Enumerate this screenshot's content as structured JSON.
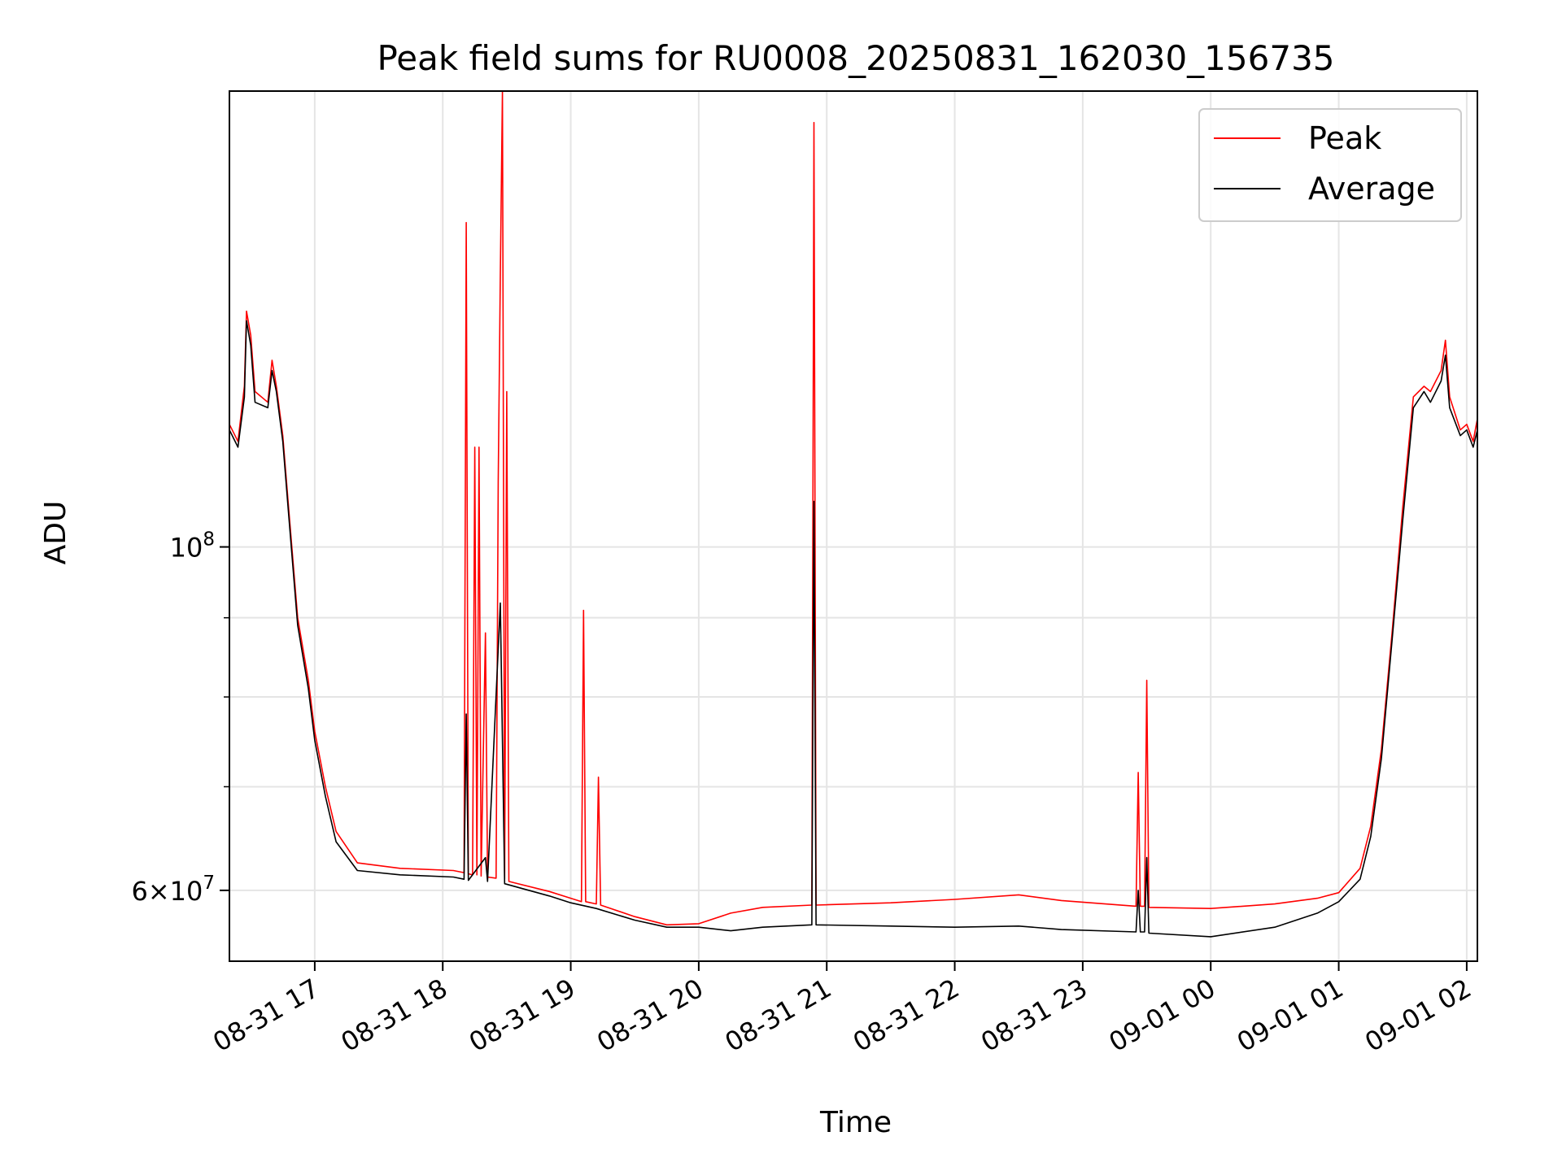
{
  "chart_data": {
    "type": "line",
    "title": "Peak field sums for RU0008_20250831_162030_156735",
    "xlabel": "Time",
    "ylabel": "ADU",
    "y_scale": "log",
    "ylim": [
      54000000,
      197000000
    ],
    "xlim": [
      "2025-08-31 16:20",
      "2025-09-01 02:05"
    ],
    "grid": true,
    "legend_position": "upper-right",
    "x_ticks": [
      {
        "t": "2025-08-31 17:00",
        "label": "08-31 17"
      },
      {
        "t": "2025-08-31 18:00",
        "label": "08-31 18"
      },
      {
        "t": "2025-08-31 19:00",
        "label": "08-31 19"
      },
      {
        "t": "2025-08-31 20:00",
        "label": "08-31 20"
      },
      {
        "t": "2025-08-31 21:00",
        "label": "08-31 21"
      },
      {
        "t": "2025-08-31 22:00",
        "label": "08-31 22"
      },
      {
        "t": "2025-08-31 23:00",
        "label": "08-31 23"
      },
      {
        "t": "2025-09-01 00:00",
        "label": "09-01 00"
      },
      {
        "t": "2025-09-01 01:00",
        "label": "09-01 01"
      },
      {
        "t": "2025-09-01 02:00",
        "label": "09-01 02"
      }
    ],
    "y_ticks_major": [
      {
        "v": 60000000,
        "mant": "6",
        "exp": "7"
      },
      {
        "v": 100000000,
        "mant": "",
        "exp": "8"
      }
    ],
    "y_ticks_minor": [
      70000000,
      80000000,
      90000000
    ],
    "series": [
      {
        "name": "Peak",
        "color": "#ff0000",
        "points": [
          [
            "2025-08-31 16:20",
            120000000
          ],
          [
            "2025-08-31 16:24",
            117000000
          ],
          [
            "2025-08-31 16:27",
            127000000
          ],
          [
            "2025-08-31 16:28",
            142000000
          ],
          [
            "2025-08-31 16:30",
            137000000
          ],
          [
            "2025-08-31 16:32",
            126000000
          ],
          [
            "2025-08-31 16:38",
            124000000
          ],
          [
            "2025-08-31 16:40",
            132000000
          ],
          [
            "2025-08-31 16:42",
            127000000
          ],
          [
            "2025-08-31 16:45",
            118000000
          ],
          [
            "2025-08-31 16:48",
            105000000
          ],
          [
            "2025-08-31 16:52",
            90000000
          ],
          [
            "2025-08-31 16:57",
            82000000
          ],
          [
            "2025-08-31 17:00",
            76000000
          ],
          [
            "2025-08-31 17:05",
            70000000
          ],
          [
            "2025-08-31 17:10",
            65500000
          ],
          [
            "2025-08-31 17:20",
            62500000
          ],
          [
            "2025-08-31 17:40",
            62000000
          ],
          [
            "2025-08-31 18:05",
            61800000
          ],
          [
            "2025-08-31 18:10",
            61600000
          ],
          [
            "2025-08-31 18:11",
            162000000
          ],
          [
            "2025-08-31 18:12",
            61500000
          ],
          [
            "2025-08-31 18:14",
            61400000
          ],
          [
            "2025-08-31 18:15",
            116000000
          ],
          [
            "2025-08-31 18:16",
            61400000
          ],
          [
            "2025-08-31 18:17",
            116000000
          ],
          [
            "2025-08-31 18:18",
            61300000
          ],
          [
            "2025-08-31 18:20",
            88000000
          ],
          [
            "2025-08-31 18:21",
            61200000
          ],
          [
            "2025-08-31 18:25",
            61100000
          ],
          [
            "2025-08-31 18:26",
            110000000
          ],
          [
            "2025-08-31 18:27",
            150000000
          ],
          [
            "2025-08-31 18:28",
            197000000
          ],
          [
            "2025-08-31 18:29",
            61000000
          ],
          [
            "2025-08-31 18:30",
            126000000
          ],
          [
            "2025-08-31 18:31",
            60800000
          ],
          [
            "2025-08-31 18:50",
            59900000
          ],
          [
            "2025-08-31 19:00",
            59300000
          ],
          [
            "2025-08-31 19:05",
            59000000
          ],
          [
            "2025-08-31 19:06",
            91000000
          ],
          [
            "2025-08-31 19:07",
            59000000
          ],
          [
            "2025-08-31 19:12",
            58800000
          ],
          [
            "2025-08-31 19:13",
            71000000
          ],
          [
            "2025-08-31 19:14",
            58700000
          ],
          [
            "2025-08-31 19:30",
            57700000
          ],
          [
            "2025-08-31 19:45",
            57000000
          ],
          [
            "2025-08-31 20:00",
            57100000
          ],
          [
            "2025-08-31 20:15",
            58000000
          ],
          [
            "2025-08-31 20:30",
            58500000
          ],
          [
            "2025-08-31 20:53",
            58700000
          ],
          [
            "2025-08-31 20:54",
            188000000
          ],
          [
            "2025-08-31 20:55",
            58700000
          ],
          [
            "2025-08-31 21:30",
            58900000
          ],
          [
            "2025-08-31 22:00",
            59200000
          ],
          [
            "2025-08-31 22:30",
            59600000
          ],
          [
            "2025-08-31 22:50",
            59100000
          ],
          [
            "2025-08-31 23:25",
            58600000
          ],
          [
            "2025-08-31 23:26",
            71500000
          ],
          [
            "2025-08-31 23:27",
            58600000
          ],
          [
            "2025-08-31 23:29",
            58600000
          ],
          [
            "2025-08-31 23:30",
            82000000
          ],
          [
            "2025-08-31 23:31",
            58500000
          ],
          [
            "2025-09-01 00:00",
            58400000
          ],
          [
            "2025-09-01 00:30",
            58800000
          ],
          [
            "2025-09-01 00:50",
            59300000
          ],
          [
            "2025-09-01 01:00",
            59800000
          ],
          [
            "2025-09-01 01:10",
            62000000
          ],
          [
            "2025-09-01 01:15",
            66000000
          ],
          [
            "2025-09-01 01:20",
            74000000
          ],
          [
            "2025-09-01 01:25",
            88000000
          ],
          [
            "2025-09-01 01:30",
            106000000
          ],
          [
            "2025-09-01 01:35",
            125000000
          ],
          [
            "2025-09-01 01:40",
            127000000
          ],
          [
            "2025-09-01 01:43",
            126000000
          ],
          [
            "2025-09-01 01:48",
            130000000
          ],
          [
            "2025-09-01 01:50",
            136000000
          ],
          [
            "2025-09-01 01:52",
            125000000
          ],
          [
            "2025-09-01 01:57",
            119000000
          ],
          [
            "2025-09-01 02:00",
            120000000
          ],
          [
            "2025-09-01 02:03",
            117000000
          ],
          [
            "2025-09-01 02:05",
            121000000
          ]
        ]
      },
      {
        "name": "Average",
        "color": "#000000",
        "points": [
          [
            "2025-08-31 16:20",
            119000000
          ],
          [
            "2025-08-31 16:24",
            116000000
          ],
          [
            "2025-08-31 16:27",
            125000000
          ],
          [
            "2025-08-31 16:28",
            140000000
          ],
          [
            "2025-08-31 16:30",
            135000000
          ],
          [
            "2025-08-31 16:32",
            124000000
          ],
          [
            "2025-08-31 16:38",
            123000000
          ],
          [
            "2025-08-31 16:40",
            130000000
          ],
          [
            "2025-08-31 16:42",
            126000000
          ],
          [
            "2025-08-31 16:45",
            117000000
          ],
          [
            "2025-08-31 16:48",
            104000000
          ],
          [
            "2025-08-31 16:52",
            89000000
          ],
          [
            "2025-08-31 16:57",
            81000000
          ],
          [
            "2025-08-31 17:00",
            75000000
          ],
          [
            "2025-08-31 17:05",
            69000000
          ],
          [
            "2025-08-31 17:10",
            64500000
          ],
          [
            "2025-08-31 17:20",
            61800000
          ],
          [
            "2025-08-31 17:40",
            61400000
          ],
          [
            "2025-08-31 18:05",
            61200000
          ],
          [
            "2025-08-31 18:10",
            61000000
          ],
          [
            "2025-08-31 18:11",
            78000000
          ],
          [
            "2025-08-31 18:12",
            60900000
          ],
          [
            "2025-08-31 18:20",
            63000000
          ],
          [
            "2025-08-31 18:21",
            60800000
          ],
          [
            "2025-08-31 18:27",
            92000000
          ],
          [
            "2025-08-31 18:28",
            75000000
          ],
          [
            "2025-08-31 18:29",
            60600000
          ],
          [
            "2025-08-31 18:50",
            59500000
          ],
          [
            "2025-08-31 19:00",
            58900000
          ],
          [
            "2025-08-31 19:12",
            58400000
          ],
          [
            "2025-08-31 19:30",
            57400000
          ],
          [
            "2025-08-31 19:45",
            56800000
          ],
          [
            "2025-08-31 20:00",
            56800000
          ],
          [
            "2025-08-31 20:15",
            56500000
          ],
          [
            "2025-08-31 20:30",
            56800000
          ],
          [
            "2025-08-31 20:53",
            57000000
          ],
          [
            "2025-08-31 20:54",
            107000000
          ],
          [
            "2025-08-31 20:55",
            57000000
          ],
          [
            "2025-08-31 21:30",
            56900000
          ],
          [
            "2025-08-31 22:00",
            56800000
          ],
          [
            "2025-08-31 22:30",
            56900000
          ],
          [
            "2025-08-31 22:50",
            56600000
          ],
          [
            "2025-08-31 23:25",
            56400000
          ],
          [
            "2025-08-31 23:26",
            60000000
          ],
          [
            "2025-08-31 23:27",
            56400000
          ],
          [
            "2025-08-31 23:29",
            56400000
          ],
          [
            "2025-08-31 23:30",
            63000000
          ],
          [
            "2025-08-31 23:31",
            56300000
          ],
          [
            "2025-09-01 00:00",
            56000000
          ],
          [
            "2025-09-01 00:30",
            56800000
          ],
          [
            "2025-09-01 00:50",
            58000000
          ],
          [
            "2025-09-01 01:00",
            59000000
          ],
          [
            "2025-09-01 01:10",
            61000000
          ],
          [
            "2025-09-01 01:15",
            65000000
          ],
          [
            "2025-09-01 01:20",
            73000000
          ],
          [
            "2025-09-01 01:25",
            87000000
          ],
          [
            "2025-09-01 01:30",
            104000000
          ],
          [
            "2025-09-01 01:35",
            123000000
          ],
          [
            "2025-09-01 01:40",
            126000000
          ],
          [
            "2025-09-01 01:43",
            124000000
          ],
          [
            "2025-09-01 01:48",
            128000000
          ],
          [
            "2025-09-01 01:50",
            133000000
          ],
          [
            "2025-09-01 01:52",
            123000000
          ],
          [
            "2025-09-01 01:57",
            118000000
          ],
          [
            "2025-09-01 02:00",
            119000000
          ],
          [
            "2025-09-01 02:03",
            116000000
          ],
          [
            "2025-09-01 02:05",
            119000000
          ]
        ]
      }
    ]
  }
}
